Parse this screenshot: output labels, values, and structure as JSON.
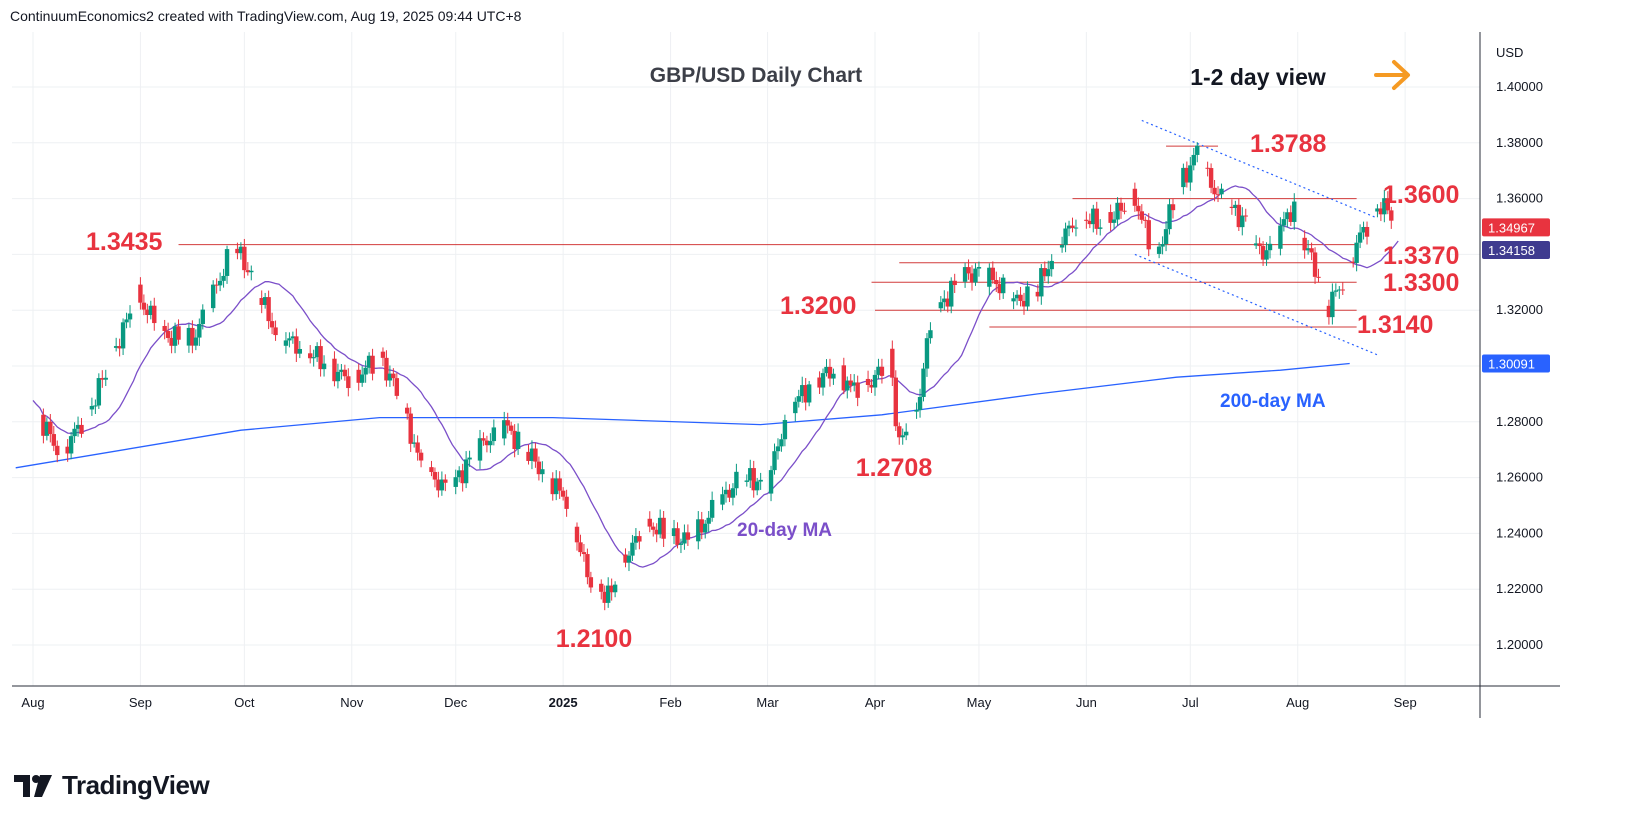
{
  "header": {
    "attribution": "ContinuumEconomics2 created with TradingView.com, Aug 19, 2025 09:44 UTC+8"
  },
  "footer": {
    "brand": "TradingView"
  },
  "chart_data": {
    "type": "candlestick",
    "title": "GBP/USD Daily Chart",
    "view_label": "1-2 day view",
    "view_arrow": "right-arrow-icon",
    "currency": "USD",
    "y_range": [
      1.185,
      1.42
    ],
    "y_ticks": [
      "1.40000",
      "1.38000",
      "1.36000",
      "1.34000",
      "1.32000",
      "1.30000",
      "1.28000",
      "1.26000",
      "1.24000",
      "1.22000",
      "1.20000"
    ],
    "y_tick_values": [
      1.4,
      1.38,
      1.36,
      1.34,
      1.32,
      1.3,
      1.28,
      1.26,
      1.24,
      1.22,
      1.2
    ],
    "x_ticks": [
      {
        "label": "Aug",
        "day": 0
      },
      {
        "label": "Sep",
        "day": 31
      },
      {
        "label": "Oct",
        "day": 61
      },
      {
        "label": "Nov",
        "day": 92
      },
      {
        "label": "Dec",
        "day": 122
      },
      {
        "label": "2025",
        "day": 153,
        "bold": true
      },
      {
        "label": "Feb",
        "day": 184
      },
      {
        "label": "Mar",
        "day": 212
      },
      {
        "label": "Apr",
        "day": 243
      },
      {
        "label": "May",
        "day": 273
      },
      {
        "label": "Jun",
        "day": 304
      },
      {
        "label": "Jul",
        "day": 334
      },
      {
        "label": "Aug",
        "day": 365
      },
      {
        "label": "Sep",
        "day": 396
      }
    ],
    "price_badges": [
      {
        "text": "1.34967",
        "value": 1.34967,
        "bg": "#e8333f",
        "fg": "#ffffff"
      },
      {
        "text": "1.34158",
        "value": 1.34158,
        "bg": "#3f3b8f",
        "fg": "#ffffff"
      },
      {
        "text": "1.30091",
        "value": 1.30091,
        "bg": "#2962ff",
        "fg": "#ffffff"
      }
    ],
    "levels": [
      {
        "text": "1.3788",
        "value": 1.3788,
        "start_day": 327,
        "end_day": 342
      },
      {
        "text": "1.3600",
        "value": 1.36,
        "start_day": 300,
        "end_day": 382
      },
      {
        "text": "1.3435",
        "value": 1.3435,
        "start_day": 42,
        "end_day": 382
      },
      {
        "text": "1.3370",
        "value": 1.337,
        "start_day": 250,
        "end_day": 382
      },
      {
        "text": "1.3300",
        "value": 1.33,
        "start_day": 242,
        "end_day": 382
      },
      {
        "text": "1.3200",
        "value": 1.32,
        "start_day": 243,
        "end_day": 382
      },
      {
        "text": "1.3140",
        "value": 1.314,
        "start_day": 276,
        "end_day": 382
      }
    ],
    "point_labels": [
      {
        "text": "1.2708",
        "day": 249,
        "value": 1.2708
      },
      {
        "text": "1.2100",
        "day": 162,
        "value": 1.21
      }
    ],
    "ma_labels": [
      {
        "text": "20-day MA",
        "color": "#7b4fc9"
      },
      {
        "text": "200-day MA",
        "color": "#2962ff"
      }
    ],
    "channel": {
      "upper": [
        [
          320,
          1.388
        ],
        [
          388,
          1.353
        ]
      ],
      "lower": [
        [
          318,
          1.34
        ],
        [
          388,
          1.304
        ]
      ]
    },
    "anchors": [
      [
        0,
        1.286
      ],
      [
        8,
        1.268
      ],
      [
        17,
        1.286
      ],
      [
        30,
        1.325
      ],
      [
        38,
        1.311
      ],
      [
        46,
        1.309
      ],
      [
        58,
        1.343
      ],
      [
        62,
        1.335
      ],
      [
        70,
        1.312
      ],
      [
        82,
        1.303
      ],
      [
        92,
        1.294
      ],
      [
        100,
        1.304
      ],
      [
        106,
        1.288
      ],
      [
        112,
        1.264
      ],
      [
        120,
        1.255
      ],
      [
        128,
        1.27
      ],
      [
        136,
        1.279
      ],
      [
        146,
        1.264
      ],
      [
        154,
        1.252
      ],
      [
        160,
        1.225
      ],
      [
        166,
        1.217
      ],
      [
        172,
        1.234
      ],
      [
        178,
        1.243
      ],
      [
        184,
        1.239
      ],
      [
        190,
        1.237
      ],
      [
        196,
        1.248
      ],
      [
        204,
        1.26
      ],
      [
        212,
        1.258
      ],
      [
        218,
        1.285
      ],
      [
        226,
        1.295
      ],
      [
        232,
        1.299
      ],
      [
        236,
        1.292
      ],
      [
        243,
        1.295
      ],
      [
        247,
        1.305
      ],
      [
        250,
        1.272
      ],
      [
        255,
        1.283
      ],
      [
        258,
        1.308
      ],
      [
        262,
        1.322
      ],
      [
        268,
        1.332
      ],
      [
        273,
        1.334
      ],
      [
        278,
        1.33
      ],
      [
        284,
        1.323
      ],
      [
        290,
        1.328
      ],
      [
        296,
        1.344
      ],
      [
        302,
        1.354
      ],
      [
        308,
        1.351
      ],
      [
        314,
        1.356
      ],
      [
        318,
        1.36
      ],
      [
        322,
        1.345
      ],
      [
        324,
        1.338
      ],
      [
        330,
        1.362
      ],
      [
        334,
        1.372
      ],
      [
        336,
        1.377
      ],
      [
        340,
        1.365
      ],
      [
        344,
        1.358
      ],
      [
        350,
        1.352
      ],
      [
        354,
        1.34
      ],
      [
        358,
        1.344
      ],
      [
        362,
        1.354
      ],
      [
        364,
        1.357
      ],
      [
        367,
        1.343
      ],
      [
        370,
        1.336
      ],
      [
        373,
        1.32
      ],
      [
        375,
        1.324
      ],
      [
        379,
        1.332
      ],
      [
        382,
        1.344
      ],
      [
        386,
        1.353
      ],
      [
        389,
        1.358
      ],
      [
        392,
        1.354
      ],
      [
        394,
        1.3497
      ]
    ]
  }
}
